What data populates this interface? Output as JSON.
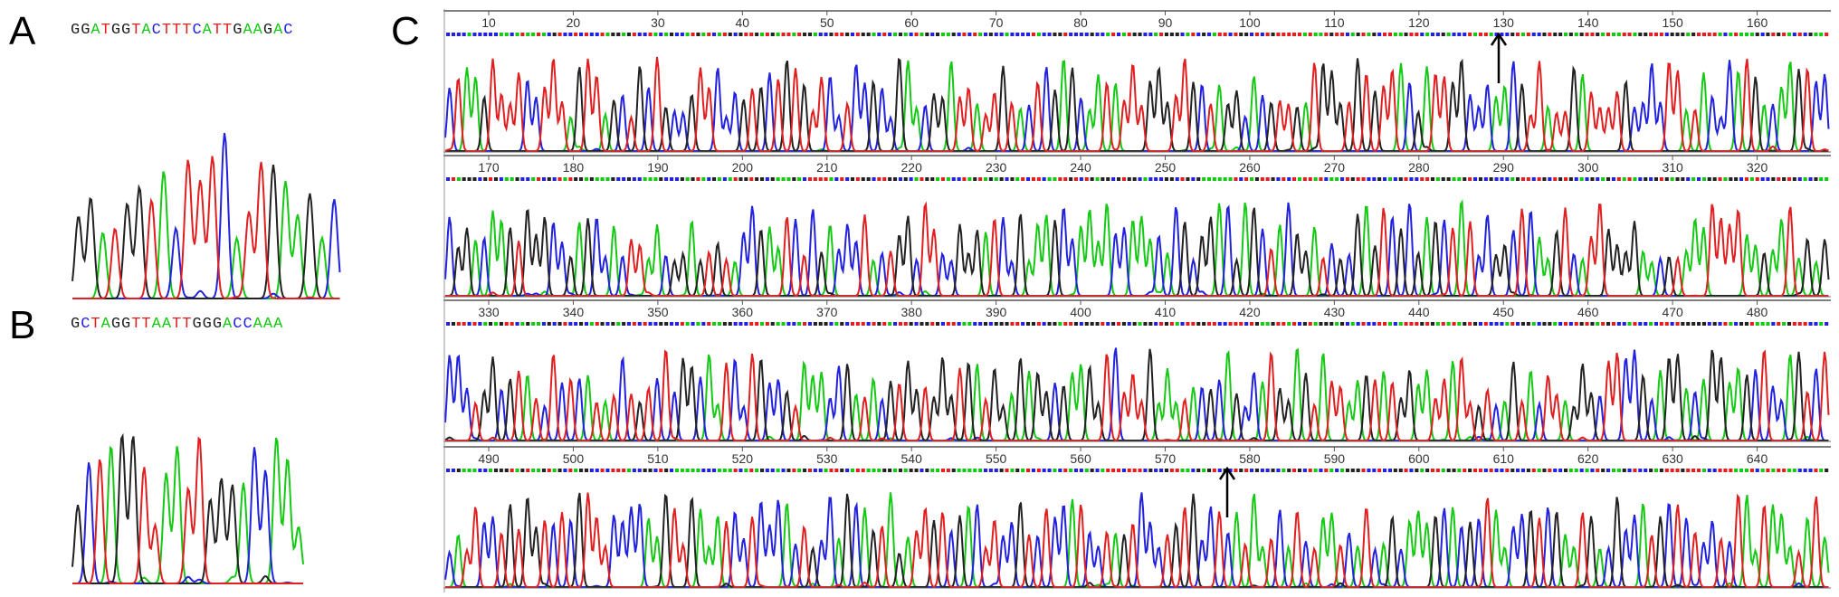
{
  "colors": {
    "A": "#15c915",
    "C": "#2222dd",
    "G": "#222222",
    "T": "#e02020"
  },
  "panels": {
    "A": {
      "label": "A",
      "sequence": "GGATGGTACTTTCATTGAAGAC"
    },
    "B": {
      "label": "B",
      "sequence": "GCTAGGTTAATTGGGACCAAA"
    },
    "C": {
      "label": "C",
      "rows": [
        {
          "ticks": [
            "10",
            "20",
            "30",
            "40",
            "50",
            "60",
            "70",
            "80",
            "90",
            "100",
            "110",
            "120",
            "130",
            "140",
            "150",
            "160"
          ]
        },
        {
          "ticks": [
            "170",
            "180",
            "190",
            "200",
            "210",
            "220",
            "230",
            "240",
            "250",
            "260",
            "270",
            "280",
            "290",
            "300",
            "310",
            "320"
          ]
        },
        {
          "ticks": [
            "330",
            "340",
            "350",
            "360",
            "370",
            "380",
            "390",
            "400",
            "410",
            "420",
            "430",
            "440",
            "450",
            "460",
            "470",
            "480"
          ]
        },
        {
          "ticks": [
            "490",
            "500",
            "510",
            "520",
            "530",
            "540",
            "550",
            "560",
            "570",
            "580",
            "590",
            "600",
            "610",
            "620",
            "630",
            "640"
          ]
        }
      ]
    }
  }
}
